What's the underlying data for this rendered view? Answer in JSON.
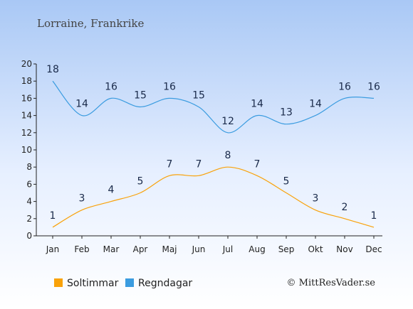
{
  "chart_data": {
    "type": "line",
    "title": "Lorraine, Frankrike",
    "categories": [
      "Jan",
      "Feb",
      "Mar",
      "Apr",
      "Maj",
      "Jun",
      "Jul",
      "Aug",
      "Sep",
      "Okt",
      "Nov",
      "Dec"
    ],
    "yticks": [
      0,
      2,
      4,
      6,
      8,
      10,
      12,
      14,
      16,
      18,
      20
    ],
    "ylim": [
      0,
      20
    ],
    "grid": false,
    "legend_position": "bottom-left",
    "series": [
      {
        "name": "Soltimmar",
        "color": "#f9a20a",
        "values": [
          1,
          3,
          4,
          5,
          7,
          7,
          8,
          7,
          5,
          3,
          2,
          1
        ]
      },
      {
        "name": "Regndagar",
        "color": "#3b9ce0",
        "values": [
          18,
          14,
          16,
          15,
          16,
          15,
          12,
          14,
          13,
          14,
          16,
          16
        ]
      }
    ],
    "credit": "© MittResVader.se"
  }
}
